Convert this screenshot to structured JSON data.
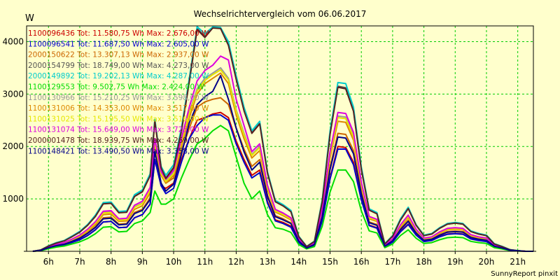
{
  "chart_data": {
    "type": "line",
    "title": "Wechselrichtervergleich vom 06.06.2017",
    "ylabel": "W",
    "xlabel": "",
    "footer": "SunnyReport pinxit",
    "ylim": [
      0,
      4300
    ],
    "xlim": [
      5.3,
      21.5
    ],
    "y_ticks": [
      1000,
      2000,
      3000,
      4000
    ],
    "x_ticks": [
      "6h",
      "7h",
      "8h",
      "9h",
      "10h",
      "11h",
      "12h",
      "13h",
      "14h",
      "15h",
      "16h",
      "17h",
      "18h",
      "19h",
      "20h",
      "21h"
    ],
    "x_tick_values": [
      6,
      7,
      8,
      9,
      10,
      11,
      12,
      13,
      14,
      15,
      16,
      17,
      18,
      19,
      20,
      21
    ],
    "grid": true,
    "legend_position": "top-left",
    "colors": {
      "background": "#ffffcc",
      "plot_background": "#ffffcc",
      "grid": "#00cc00"
    },
    "x": [
      5.5,
      5.75,
      6,
      6.25,
      6.5,
      6.75,
      7,
      7.25,
      7.5,
      7.75,
      8,
      8.25,
      8.5,
      8.75,
      9,
      9.25,
      9.4,
      9.6,
      9.75,
      10,
      10.25,
      10.5,
      10.75,
      11,
      11.25,
      11.5,
      11.75,
      12,
      12.25,
      12.5,
      12.75,
      13,
      13.25,
      13.5,
      13.75,
      14,
      14.25,
      14.5,
      14.75,
      15,
      15.25,
      15.5,
      15.75,
      16,
      16.25,
      16.5,
      16.75,
      17,
      17.25,
      17.5,
      17.75,
      18,
      18.25,
      18.5,
      18.75,
      19,
      19.25,
      19.5,
      19.75,
      20,
      20.25,
      20.5,
      20.75,
      21,
      21.25,
      21.5
    ],
    "series": [
      {
        "name": "1100096436 Tot: 11.580,75 Wh Max: 2.676,00 W",
        "color": "#cc0000",
        "values": [
          0,
          15,
          60,
          95,
          120,
          170,
          220,
          300,
          410,
          560,
          570,
          450,
          460,
          640,
          700,
          900,
          1750,
          1250,
          1200,
          1300,
          1750,
          2150,
          2500,
          2550,
          2620,
          2650,
          2550,
          2100,
          1750,
          1450,
          1550,
          950,
          600,
          550,
          480,
          180,
          60,
          120,
          600,
          1400,
          2000,
          1980,
          1700,
          1000,
          500,
          450,
          90,
          180,
          380,
          520,
          320,
          190,
          210,
          280,
          330,
          340,
          330,
          240,
          210,
          190,
          90,
          60,
          20,
          8,
          0,
          0
        ]
      },
      {
        "name": "1100096541 Tot: 11.687,50 Wh Max: 2.605,00 W",
        "color": "#0000cc",
        "values": [
          0,
          15,
          60,
          95,
          120,
          170,
          220,
          300,
          410,
          560,
          570,
          450,
          460,
          640,
          700,
          900,
          1750,
          1250,
          1100,
          1200,
          1700,
          2150,
          2400,
          2550,
          2600,
          2600,
          2500,
          2050,
          1700,
          1400,
          1500,
          920,
          580,
          530,
          460,
          170,
          55,
          115,
          580,
          1380,
          1950,
          1950,
          1650,
          980,
          490,
          440,
          85,
          175,
          370,
          510,
          310,
          185,
          205,
          275,
          325,
          335,
          325,
          235,
          205,
          185,
          85,
          55,
          18,
          7,
          0,
          0
        ]
      },
      {
        "name": "2000150622 Tot: 13.307,13 Wh Max: 2.937,00 W",
        "color": "#cc6600",
        "values": [
          0,
          18,
          70,
          110,
          140,
          200,
          260,
          350,
          470,
          640,
          650,
          520,
          530,
          740,
          800,
          1020,
          2000,
          1450,
          1300,
          1400,
          1900,
          2350,
          2750,
          2850,
          2900,
          2930,
          2800,
          2350,
          1950,
          1620,
          1750,
          1070,
          680,
          620,
          540,
          200,
          65,
          135,
          680,
          1600,
          2250,
          2230,
          1920,
          1120,
          560,
          510,
          100,
          205,
          430,
          590,
          360,
          215,
          235,
          315,
          375,
          385,
          375,
          270,
          235,
          215,
          100,
          65,
          22,
          9,
          0,
          0
        ]
      },
      {
        "name": "2000154799 Tot: 18.749,00 Wh Max: 4.273,00 W",
        "color": "#555555",
        "values": [
          0,
          25,
          100,
          160,
          200,
          280,
          370,
          500,
          670,
          910,
          920,
          740,
          750,
          1050,
          1140,
          1450,
          2500,
          1600,
          1400,
          1600,
          2300,
          3250,
          4250,
          4100,
          4270,
          4260,
          3950,
          3300,
          2700,
          2270,
          2450,
          1500,
          950,
          870,
          760,
          280,
          90,
          190,
          950,
          2250,
          3150,
          3120,
          2690,
          1570,
          790,
          720,
          140,
          290,
          600,
          820,
          500,
          300,
          330,
          440,
          520,
          540,
          520,
          380,
          330,
          300,
          140,
          90,
          30,
          12,
          0,
          0
        ]
      },
      {
        "name": "2000149892 Tot: 19.202,13 Wh Max: 4.287,00 W",
        "color": "#00cccc",
        "values": [
          0,
          26,
          105,
          165,
          205,
          290,
          380,
          510,
          690,
          930,
          940,
          760,
          770,
          1080,
          1170,
          1480,
          2520,
          1620,
          1450,
          1650,
          2350,
          3300,
          4287,
          4150,
          4280,
          4270,
          4000,
          3350,
          2750,
          2300,
          2480,
          1520,
          970,
          890,
          780,
          290,
          95,
          195,
          980,
          2300,
          3220,
          3200,
          2750,
          1610,
          810,
          740,
          145,
          300,
          620,
          840,
          510,
          310,
          340,
          450,
          530,
          550,
          530,
          390,
          340,
          310,
          145,
          95,
          32,
          13,
          0,
          0
        ]
      },
      {
        "name": "1100129553 Tot: 9.502,75 Wh Max: 2.424,00 W",
        "color": "#00dd00",
        "values": [
          0,
          12,
          50,
          80,
          100,
          140,
          180,
          245,
          335,
          460,
          470,
          370,
          380,
          530,
          580,
          740,
          1150,
          900,
          900,
          1000,
          1400,
          1750,
          2050,
          2150,
          2300,
          2400,
          2300,
          1800,
          1300,
          1000,
          1150,
          700,
          450,
          420,
          360,
          130,
          45,
          90,
          480,
          1130,
          1550,
          1550,
          1330,
          770,
          390,
          350,
          70,
          140,
          300,
          410,
          250,
          150,
          165,
          220,
          260,
          270,
          260,
          190,
          165,
          150,
          70,
          45,
          15,
          6,
          0,
          0
        ]
      },
      {
        "name": "1100130966 Tot: 15.210,25 Wh Max: 3.598,00 W",
        "color": "#999999",
        "values": [
          0,
          20,
          80,
          130,
          160,
          225,
          300,
          405,
          545,
          740,
          750,
          600,
          610,
          850,
          920,
          1180,
          2100,
          1500,
          1350,
          1500,
          2100,
          2650,
          3100,
          3300,
          3400,
          3500,
          3300,
          2700,
          2250,
          1850,
          2000,
          1230,
          780,
          710,
          620,
          230,
          75,
          155,
          780,
          1850,
          2580,
          2560,
          2210,
          1290,
          650,
          590,
          115,
          235,
          490,
          670,
          410,
          245,
          270,
          360,
          425,
          440,
          425,
          310,
          270,
          245,
          115,
          75,
          25,
          10,
          0,
          0
        ]
      },
      {
        "name": "1100131006 Tot: 14.353,00 Wh Max: 3.517,00 W",
        "color": "#dd8800",
        "values": [
          0,
          19,
          75,
          120,
          150,
          210,
          280,
          380,
          510,
          700,
          710,
          570,
          580,
          800,
          870,
          1110,
          2050,
          1450,
          1300,
          1450,
          2000,
          2550,
          3000,
          3200,
          3300,
          3400,
          3200,
          2600,
          2150,
          1780,
          1920,
          1180,
          750,
          680,
          600,
          220,
          72,
          150,
          750,
          1780,
          2480,
          2460,
          2120,
          1240,
          620,
          570,
          110,
          225,
          470,
          640,
          390,
          235,
          260,
          345,
          410,
          420,
          410,
          295,
          260,
          235,
          110,
          72,
          24,
          10,
          0,
          0
        ]
      },
      {
        "name": "1100131025 Tot: 15.195,50 Wh Max: 3.516,00 W",
        "color": "#e6e600",
        "values": [
          0,
          20,
          80,
          128,
          158,
          222,
          296,
          400,
          538,
          730,
          740,
          592,
          602,
          840,
          910,
          1165,
          2080,
          1480,
          1330,
          1480,
          2080,
          2620,
          3060,
          3260,
          3370,
          3460,
          3270,
          2670,
          2220,
          1830,
          1980,
          1215,
          770,
          700,
          615,
          228,
          74,
          153,
          770,
          1830,
          2550,
          2530,
          2180,
          1275,
          640,
          585,
          113,
          232,
          485,
          660,
          405,
          242,
          266,
          355,
          420,
          435,
          420,
          305,
          266,
          242,
          113,
          74,
          25,
          10,
          0,
          0
        ]
      },
      {
        "name": "1100131074 Tot: 15.649,00 Wh Max: 3.725,00 W",
        "color": "#dd00dd",
        "values": [
          0,
          21,
          84,
          134,
          166,
          233,
          310,
          420,
          565,
          765,
          775,
          620,
          630,
          880,
          955,
          1220,
          2150,
          1520,
          1380,
          1540,
          2150,
          2750,
          3250,
          3450,
          3550,
          3725,
          3650,
          2900,
          2400,
          1900,
          2050,
          1260,
          800,
          730,
          640,
          235,
          77,
          160,
          800,
          1900,
          2650,
          2630,
          2270,
          1320,
          665,
          610,
          118,
          240,
          505,
          690,
          420,
          252,
          277,
          370,
          437,
          452,
          437,
          318,
          277,
          252,
          118,
          77,
          26,
          11,
          0,
          0
        ]
      },
      {
        "name": "2000001478 Tot: 18.939,75 Wh Max: 4.269,00 W",
        "color": "#552222",
        "values": [
          0,
          25,
          100,
          158,
          198,
          278,
          366,
          496,
          665,
          905,
          915,
          735,
          745,
          1045,
          1135,
          1440,
          2480,
          1590,
          1390,
          1590,
          2290,
          3230,
          4230,
          4080,
          4260,
          4250,
          3930,
          3280,
          2680,
          2250,
          2430,
          1490,
          945,
          865,
          755,
          278,
          89,
          188,
          945,
          2230,
          3130,
          3100,
          2670,
          1560,
          785,
          715,
          139,
          288,
          595,
          815,
          497,
          298,
          328,
          437,
          517,
          537,
          517,
          377,
          328,
          298,
          139,
          89,
          30,
          12,
          0,
          0
        ]
      },
      {
        "name": "1100148421 Tot: 13.490,50 Wh Max: 3.358,00 W",
        "color": "#000088",
        "values": [
          0,
          17,
          68,
          108,
          135,
          190,
          250,
          340,
          455,
          620,
          630,
          505,
          515,
          720,
          780,
          990,
          1900,
          1300,
          1150,
          1280,
          1850,
          2450,
          2800,
          2950,
          3050,
          3350,
          2900,
          2350,
          1900,
          1550,
          1700,
          1050,
          660,
          600,
          530,
          195,
          63,
          130,
          660,
          1560,
          2180,
          2160,
          1860,
          1090,
          545,
          495,
          97,
          200,
          415,
          570,
          350,
          210,
          230,
          305,
          365,
          375,
          365,
          265,
          230,
          210,
          97,
          63,
          21,
          9,
          0,
          0
        ]
      }
    ]
  }
}
